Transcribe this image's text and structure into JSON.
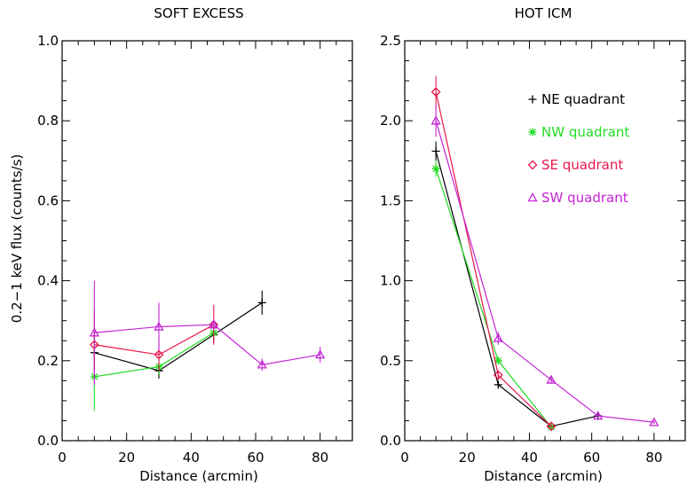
{
  "chart_data": [
    {
      "type": "line",
      "title": "SOFT EXCESS",
      "xlabel": "Distance (arcmin)",
      "ylabel": "0.2−1 keV flux (counts/s)",
      "xlim": [
        0,
        90
      ],
      "ylim": [
        0,
        1.0
      ],
      "x_ticks": [
        "0",
        "20",
        "40",
        "60",
        "80"
      ],
      "y_ticks": [
        "0.0",
        "0.2",
        "0.4",
        "0.6",
        "0.8",
        "1.0"
      ],
      "series": [
        {
          "name": "NE quadrant",
          "color": "#000000",
          "marker": "plus",
          "points": [
            {
              "x": 10,
              "y": 0.22,
              "err": 0.05
            },
            {
              "x": 30,
              "y": 0.175,
              "err": 0.02
            },
            {
              "x": 47,
              "y": 0.265,
              "err": 0.02
            },
            {
              "x": 62,
              "y": 0.345,
              "err": 0.03
            }
          ]
        },
        {
          "name": "NW quadrant",
          "color": "#22dd22",
          "marker": "asterisk",
          "points": [
            {
              "x": 10,
              "y": 0.16,
              "err": 0.085
            },
            {
              "x": 30,
              "y": 0.185,
              "err": 0.02
            },
            {
              "x": 47,
              "y": 0.27,
              "err": 0.015
            }
          ]
        },
        {
          "name": "SE quadrant",
          "color": "#e8174a",
          "marker": "diamond",
          "points": [
            {
              "x": 10,
              "y": 0.24,
              "err": 0.09
            },
            {
              "x": 30,
              "y": 0.215,
              "err": 0.04
            },
            {
              "x": 47,
              "y": 0.29,
              "err": 0.05
            }
          ]
        },
        {
          "name": "SW quadrant",
          "color": "#c425d4",
          "marker": "triangle",
          "points": [
            {
              "x": 10,
              "y": 0.27,
              "err": 0.13
            },
            {
              "x": 30,
              "y": 0.285,
              "err": 0.06
            },
            {
              "x": 47,
              "y": 0.29,
              "err": 0.015
            },
            {
              "x": 62,
              "y": 0.19,
              "err": 0.015
            },
            {
              "x": 80,
              "y": 0.215,
              "err": 0.02
            }
          ]
        }
      ]
    },
    {
      "type": "line",
      "title": "HOT ICM",
      "xlabel": "Distance (arcmin)",
      "ylabel": "",
      "xlim": [
        0,
        90
      ],
      "ylim": [
        0,
        2.5
      ],
      "x_ticks": [
        "0",
        "20",
        "40",
        "60",
        "80"
      ],
      "y_ticks": [
        "0.0",
        "0.5",
        "1.0",
        "1.5",
        "2.0",
        "2.5"
      ],
      "legend": "top-right",
      "series": [
        {
          "name": "NE quadrant",
          "color": "#000000",
          "marker": "plus",
          "points": [
            {
              "x": 10,
              "y": 1.81,
              "err": 0.06
            },
            {
              "x": 30,
              "y": 0.35,
              "err": 0.01
            },
            {
              "x": 47,
              "y": 0.09,
              "err": 0.01
            },
            {
              "x": 62,
              "y": 0.155,
              "err": 0.01
            }
          ]
        },
        {
          "name": "NW quadrant",
          "color": "#22dd22",
          "marker": "asterisk",
          "points": [
            {
              "x": 10,
              "y": 1.7,
              "err": 0.05
            },
            {
              "x": 30,
              "y": 0.5,
              "err": 0.02
            },
            {
              "x": 47,
              "y": 0.085,
              "err": 0.01
            }
          ]
        },
        {
          "name": "SE quadrant",
          "color": "#e8174a",
          "marker": "diamond",
          "points": [
            {
              "x": 10,
              "y": 2.18,
              "err": 0.1
            },
            {
              "x": 30,
              "y": 0.41,
              "err": 0.03
            },
            {
              "x": 47,
              "y": 0.09,
              "err": 0.01
            }
          ]
        },
        {
          "name": "SW quadrant",
          "color": "#c425d4",
          "marker": "triangle",
          "points": [
            {
              "x": 10,
              "y": 2.0,
              "err": 0.1
            },
            {
              "x": 30,
              "y": 0.64,
              "err": 0.04
            },
            {
              "x": 47,
              "y": 0.38,
              "err": 0.02
            },
            {
              "x": 62,
              "y": 0.155,
              "err": 0.01
            },
            {
              "x": 80,
              "y": 0.115,
              "err": 0.01
            }
          ]
        }
      ]
    }
  ]
}
